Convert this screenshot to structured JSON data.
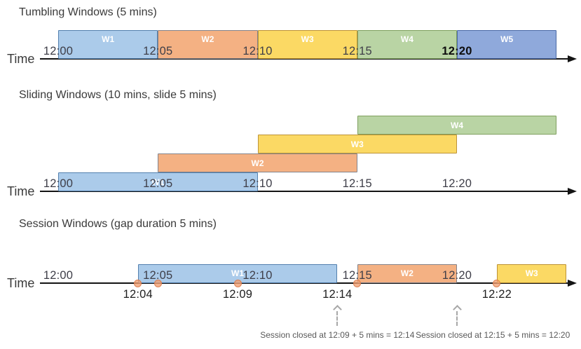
{
  "time_axis_label": "Time",
  "palette": {
    "blue": {
      "fill": "#ABCBEA",
      "border": "#5380AE"
    },
    "orange": {
      "fill": "#F4B183",
      "border": "#83838B"
    },
    "yellow": {
      "fill": "#FBD964",
      "border": "#BD9337"
    },
    "green": {
      "fill": "#B9D4A4",
      "border": "#7FA05F"
    },
    "indigo": {
      "fill": "#8FA9DB",
      "border": "#4968A6"
    },
    "axis_color": "#141414",
    "tick_color": "#3E3E48",
    "event_label_color": "#1E1E1E",
    "event_dot_fill": "rgba(241,158,112,0.78)",
    "event_dot_border": "rgba(217,120,70,0.85)",
    "annotation_color": "#595959",
    "annotation_arrow_color": "#A8A8A8",
    "window_label_color": "#FFFFFF",
    "title_color": "#3A3A3A"
  },
  "sections": [
    {
      "id": "tumbling",
      "title": "Tumbling Windows (5 mins)",
      "windows": [
        {
          "label": "W1",
          "start_min": 0,
          "end_min": 5,
          "color": "blue"
        },
        {
          "label": "W2",
          "start_min": 5,
          "end_min": 10,
          "color": "orange"
        },
        {
          "label": "W3",
          "start_min": 10,
          "end_min": 15,
          "color": "yellow"
        },
        {
          "label": "W4",
          "start_min": 15,
          "end_min": 20,
          "color": "green"
        },
        {
          "label": "W5",
          "start_min": 20,
          "end_min": 25,
          "color": "indigo"
        }
      ],
      "ticks": [
        {
          "label": "12:00",
          "min": 0
        },
        {
          "label": "12:05",
          "min": 5
        },
        {
          "label": "12:10",
          "min": 10
        },
        {
          "label": "12:15",
          "min": 15
        },
        {
          "label": "12:20",
          "min": 20,
          "bold": true
        }
      ]
    },
    {
      "id": "sliding",
      "title": "Sliding Windows (10 mins, slide 5 mins)",
      "windows": [
        {
          "label": "W1",
          "start_min": 0,
          "end_min": 10,
          "color": "blue",
          "row": 0
        },
        {
          "label": "W2",
          "start_min": 5,
          "end_min": 15,
          "color": "orange",
          "row": 1
        },
        {
          "label": "W3",
          "start_min": 10,
          "end_min": 20,
          "color": "yellow",
          "row": 2
        },
        {
          "label": "W4",
          "start_min": 15,
          "end_min": 25,
          "color": "green",
          "row": 3
        }
      ],
      "ticks": [
        {
          "label": "12:00",
          "min": 0
        },
        {
          "label": "12:05",
          "min": 5
        },
        {
          "label": "12:10",
          "min": 10
        },
        {
          "label": "12:15",
          "min": 15
        },
        {
          "label": "12:20",
          "min": 20
        }
      ]
    },
    {
      "id": "session",
      "title": "Session Windows (gap duration 5 mins)",
      "windows": [
        {
          "label": "W1",
          "start_min": 4,
          "end_min": 14,
          "color": "blue"
        },
        {
          "label": "W2",
          "start_min": 15,
          "end_min": 20,
          "color": "orange"
        },
        {
          "label": "W3",
          "start_min": 22,
          "end_min": 25.5,
          "color": "yellow"
        }
      ],
      "ticks": [
        {
          "label": "12:00",
          "min": 0
        },
        {
          "label": "12:05",
          "min": 5
        },
        {
          "label": "12:10",
          "min": 10
        },
        {
          "label": "12:15",
          "min": 15
        },
        {
          "label": "12:20",
          "min": 20
        }
      ],
      "event_ticks": [
        {
          "label": "12:04",
          "min": 4
        },
        {
          "label": "12:09",
          "min": 9
        },
        {
          "label": "12:14",
          "min": 14
        },
        {
          "label": "12:22",
          "min": 22
        }
      ],
      "events_min": [
        4,
        5,
        9,
        15,
        22
      ],
      "annotations": [
        {
          "text": "Session closed at 12:09 + 5 mins = 12:14",
          "arrow_min": 14,
          "text_center_min": 14
        },
        {
          "text": "Session closed at 12:15 + 5 mins = 12:20",
          "arrow_min": 20,
          "text_center_min": 21.8
        }
      ]
    }
  ]
}
